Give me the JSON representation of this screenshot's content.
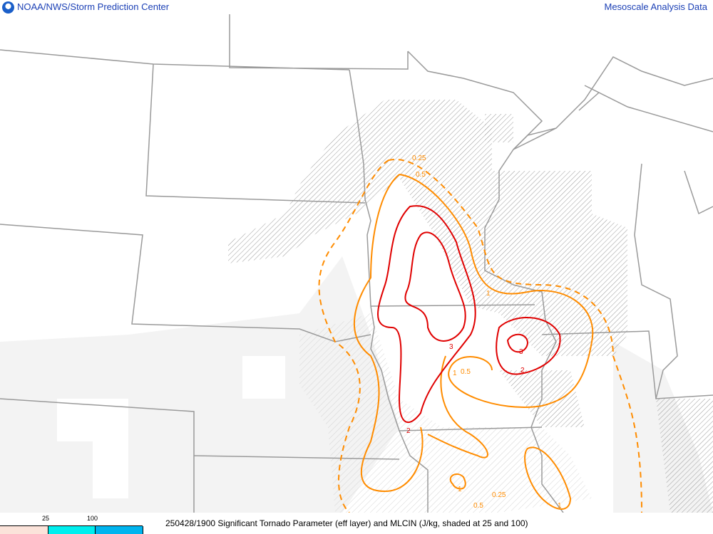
{
  "header": {
    "title": "NOAA/NWS/Storm Prediction Center",
    "right_title": "Mesoscale Analysis Data",
    "logo": "noaa-logo"
  },
  "footer": {
    "caption": "250428/1900 Significant Tornado Parameter (eff layer) and MLCIN (J/kg, shaded at 25 and 100)",
    "legend": {
      "ticks": [
        "25",
        "100"
      ],
      "colors": [
        "#fbe3da",
        "#00eeee",
        "#00b4ee"
      ]
    }
  },
  "map": {
    "colors": {
      "border": "#9a9a9a",
      "stp_low": "#ff8c00",
      "stp_high": "#e00000",
      "hatch": "#a0a0a0"
    },
    "contour_labels": {
      "l025a": "0.25",
      "l05a": "0.5",
      "l1a": "1",
      "l05b": "0.5",
      "l1b": "1",
      "l2a": "2",
      "l3a": "3",
      "l3b": "3",
      "l2b": "2",
      "l1c": "1",
      "l025b": "0.25",
      "l05c": "0.5",
      "l1d": "1"
    }
  }
}
